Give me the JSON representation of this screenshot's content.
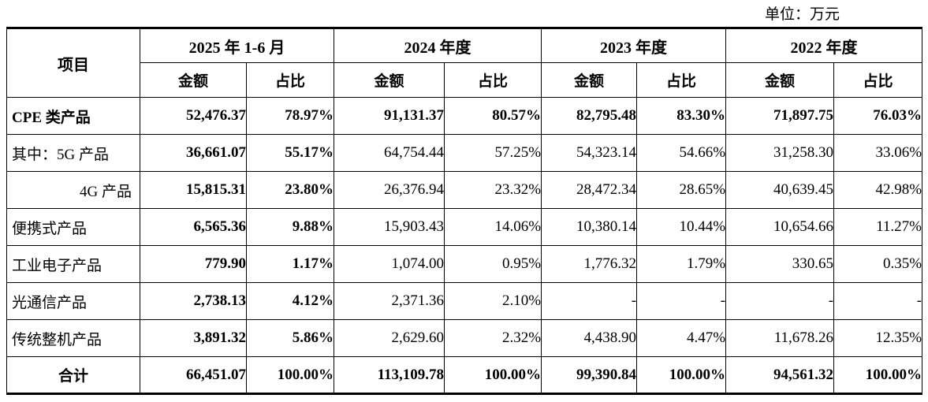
{
  "unit_label": "单位：万元",
  "table": {
    "header": {
      "item_label": "项目",
      "periods": [
        "2025 年 1-6 月",
        "2024 年度",
        "2023 年度",
        "2022 年度"
      ],
      "amount_label": "金额",
      "ratio_label": "占比"
    },
    "rows": [
      {
        "label": "CPE 类产品",
        "bold": true,
        "align": "left",
        "values": [
          "52,476.37",
          "78.97%",
          "91,131.37",
          "80.57%",
          "82,795.48",
          "83.30%",
          "71,897.75",
          "76.03%"
        ]
      },
      {
        "label": "其中：5G 产品",
        "bold": false,
        "align": "left",
        "values": [
          "36,661.07",
          "55.17%",
          "64,754.44",
          "57.25%",
          "54,323.14",
          "54.66%",
          "31,258.30",
          "33.06%"
        ]
      },
      {
        "label": "4G 产品",
        "bold": false,
        "align": "right",
        "values": [
          "15,815.31",
          "23.80%",
          "26,376.94",
          "23.32%",
          "28,472.34",
          "28.65%",
          "40,639.45",
          "42.98%"
        ]
      },
      {
        "label": "便携式产品",
        "bold": false,
        "align": "left",
        "values": [
          "6,565.36",
          "9.88%",
          "15,903.43",
          "14.06%",
          "10,380.14",
          "10.44%",
          "10,654.66",
          "11.27%"
        ]
      },
      {
        "label": "工业电子产品",
        "bold": false,
        "align": "left",
        "values": [
          "779.90",
          "1.17%",
          "1,074.00",
          "0.95%",
          "1,776.32",
          "1.79%",
          "330.65",
          "0.35%"
        ]
      },
      {
        "label": "光通信产品",
        "bold": false,
        "align": "left",
        "values": [
          "2,738.13",
          "4.12%",
          "2,371.36",
          "2.10%",
          "-",
          "-",
          "-",
          "-"
        ]
      },
      {
        "label": "传统整机产品",
        "bold": false,
        "align": "left",
        "values": [
          "3,891.32",
          "5.86%",
          "2,629.60",
          "2.32%",
          "4,438.90",
          "4.47%",
          "11,678.26",
          "12.35%"
        ]
      },
      {
        "label": "合计",
        "bold": true,
        "align": "center",
        "values": [
          "66,451.07",
          "100.00%",
          "113,109.78",
          "100.00%",
          "99,390.84",
          "100.00%",
          "94,561.32",
          "100.00%"
        ]
      }
    ]
  }
}
